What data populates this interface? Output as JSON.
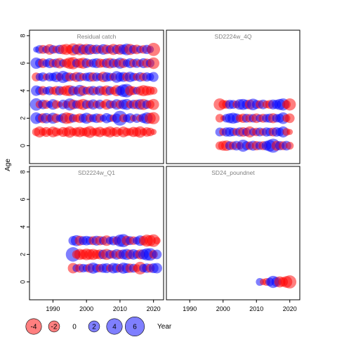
{
  "chart_data": {
    "type": "scatter",
    "subtype": "bubble-residuals",
    "xlabel": "Year",
    "ylabel": "Age",
    "xlim": [
      1983,
      2023
    ],
    "ylim": [
      -1.3,
      8.4
    ],
    "x_ticks": [
      1990,
      2000,
      2010,
      2020
    ],
    "y_ticks": [
      0,
      2,
      4,
      6,
      8
    ],
    "colors": {
      "positive": "#0000ff",
      "negative": "#ff0000",
      "alpha": 0.5
    },
    "legend": {
      "placement": "bottom-left",
      "items": [
        {
          "label": "-4",
          "value": -4
        },
        {
          "label": "-2",
          "value": -2
        },
        {
          "label": "0",
          "value": 0
        },
        {
          "label": "2",
          "value": 2
        },
        {
          "label": "4",
          "value": 4
        },
        {
          "label": "6",
          "value": 6
        }
      ]
    },
    "panels": [
      {
        "title": "Residual catch",
        "ages": [
          1,
          2,
          3,
          4,
          5,
          6,
          7
        ],
        "year_start": 1985,
        "year_end": 2020,
        "residuals": [
          [
            -1.1,
            -2.0,
            -1.0,
            -1.6,
            -0.8,
            -1.9,
            -1.3,
            -0.7,
            -1.6,
            -1.3,
            -2.1,
            -1.0,
            -1.4,
            -1.8,
            -1.2,
            -1.5,
            -2.3,
            -1.0,
            -1.3,
            -1.8,
            -0.9,
            -1.4,
            -2.0,
            -1.1,
            -1.6,
            -0.8,
            -1.9,
            -1.2,
            -1.0,
            -1.7,
            -1.4,
            -2.1,
            -0.9,
            -1.5,
            -1.2,
            -0.6
          ],
          [
            2.2,
            1.3,
            -1.6,
            1.8,
            -1.0,
            2.0,
            -1.4,
            0.9,
            1.6,
            -2.2,
            -1.8,
            1.2,
            -1.0,
            -1.5,
            1.3,
            2.0,
            -1.2,
            1.1,
            1.5,
            -1.3,
            0.8,
            1.7,
            1.0,
            -0.9,
            1.4,
            3.6,
            -1.1,
            1.0,
            1.6,
            -0.8,
            1.4,
            -0.9,
            1.5,
            2.2,
            -2.0,
            -2.4
          ],
          [
            2.5,
            -1.0,
            1.5,
            -1.3,
            0.8,
            1.8,
            -1.2,
            -0.6,
            1.5,
            -1.0,
            2.4,
            -1.6,
            1.2,
            -1.4,
            -2.0,
            1.3,
            -1.2,
            1.7,
            -1.0,
            1.5,
            -0.8,
            -1.8,
            1.2,
            -1.0,
            1.8,
            -1.3,
            1.6,
            2.0,
            -1.1,
            1.4,
            -1.5,
            1.8,
            -2.0,
            1.3,
            -1.2,
            -2.0
          ],
          [
            1.8,
            1.2,
            -1.4,
            0.9,
            1.3,
            -1.0,
            -1.5,
            1.4,
            -1.2,
            -1.8,
            -2.0,
            1.5,
            -1.0,
            2.2,
            -1.6,
            1.0,
            -1.3,
            1.5,
            -1.0,
            1.6,
            -1.2,
            -1.8,
            1.3,
            -1.0,
            -2.0,
            1.5,
            2.6,
            3.0,
            -1.6,
            -1.2,
            1.0,
            -1.4,
            -2.0,
            -1.6,
            -1.3,
            -1.0
          ],
          [
            -1.3,
            1.0,
            1.4,
            -0.8,
            1.3,
            1.2,
            1.8,
            -1.0,
            2.4,
            1.5,
            -1.3,
            1.0,
            -1.6,
            1.4,
            -1.0,
            1.2,
            1.5,
            -1.4,
            1.3,
            1.0,
            -1.8,
            1.5,
            1.2,
            -1.0,
            2.2,
            1.4,
            1.6,
            -1.3,
            1.8,
            1.2,
            -1.0,
            1.5,
            -1.2,
            1.4,
            1.0,
            1.6
          ],
          [
            2.1,
            1.3,
            -1.5,
            1.0,
            1.6,
            -1.2,
            1.4,
            -1.8,
            1.0,
            -1.4,
            -2.2,
            -2.5,
            1.2,
            -1.6,
            -2.0,
            1.5,
            -1.0,
            1.3,
            1.6,
            -1.4,
            -1.2,
            1.5,
            -1.8,
            1.4,
            -1.2,
            2.0,
            -1.5,
            1.0,
            1.6,
            -1.2,
            1.4,
            -1.0,
            1.6,
            -1.4,
            1.2,
            -2.2
          ],
          [
            0.6,
            1.2,
            -1.3,
            1.0,
            -1.8,
            1.2,
            -1.0,
            1.4,
            -1.6,
            -2.0,
            -1.2,
            -2.4,
            1.5,
            -2.2,
            1.6,
            -2.0,
            1.8,
            -1.4,
            1.5,
            -1.2,
            1.8,
            -1.5,
            1.2,
            -2.0,
            1.4,
            -1.8,
            1.6,
            2.2,
            -2.0,
            1.3,
            -1.5,
            1.0,
            -1.2,
            1.4,
            0.9,
            -2.8
          ]
        ]
      },
      {
        "title": "SD2224w_4Q",
        "ages": [
          0,
          1,
          2,
          3
        ],
        "year_start": 1999,
        "year_end": 2020,
        "residuals": [
          [
            -1.2,
            -1.6,
            -1.8,
            1.3,
            -1.2,
            1.5,
            -1.0,
            2.4,
            1.3,
            -1.2,
            1.6,
            -1.4,
            1.2,
            -1.3,
            1.5,
            2.2,
            3.2,
            -1.6,
            1.4,
            -1.3,
            1.5,
            -1.0
          ],
          [
            1.3,
            -1.0,
            1.4,
            1.5,
            1.2,
            -1.0,
            1.4,
            -1.5,
            1.2,
            -2.0,
            1.0,
            -1.2,
            1.3,
            -1.0,
            1.4,
            1.2,
            -1.3,
            1.5,
            1.2,
            2.0,
            -1.0,
            -0.6
          ],
          [
            -1.2,
            -0.5,
            1.2,
            1.6,
            2.0,
            1.5,
            -1.0,
            -1.4,
            1.3,
            -1.2,
            1.2,
            -1.5,
            1.0,
            -1.3,
            1.2,
            1.4,
            -1.6,
            1.2,
            1.3,
            2.2,
            -1.0,
            -1.5
          ],
          [
            -2.4,
            -1.3,
            -1.2,
            1.4,
            1.3,
            -1.0,
            1.8,
            2.0,
            1.4,
            -1.6,
            2.2,
            1.3,
            -1.2,
            1.5,
            -1.0,
            -1.3,
            1.6,
            1.4,
            2.0,
            2.4,
            -1.2,
            -2.4
          ]
        ]
      },
      {
        "title": "SD2224w_Q1",
        "ages": [
          1,
          2,
          3
        ],
        "year_start": 1996,
        "year_end": 2021,
        "residuals": [
          [
            -1.8,
            1.0,
            -1.3,
            1.2,
            1.0,
            -1.4,
            2.0,
            1.3,
            -1.2,
            1.4,
            1.6,
            -1.0,
            1.8,
            1.5,
            -1.2,
            2.0,
            1.6,
            -1.4,
            1.3,
            -1.0,
            -2.6,
            1.2,
            1.5,
            -1.3,
            1.6,
            1.8
          ],
          [
            3.4,
            -1.2,
            -2.0,
            -1.6,
            -2.2,
            -1.8,
            -2.0,
            -1.4,
            -1.6,
            1.5,
            -2.0,
            1.3,
            -1.2,
            1.8,
            -1.4,
            1.6,
            2.0,
            -1.5,
            1.8,
            1.2,
            -1.6,
            1.8,
            2.4,
            2.6,
            -1.2,
            1.5
          ],
          [
            1.4,
            2.0,
            -1.6,
            1.3,
            1.5,
            1.2,
            -1.3,
            1.6,
            -1.4,
            1.2,
            -1.8,
            1.0,
            1.4,
            -1.2,
            2.4,
            2.8,
            -1.6,
            1.3,
            -1.2,
            1.0,
            1.8,
            -1.4,
            -2.4,
            -2.0,
            -2.6,
            -0.9
          ]
        ]
      },
      {
        "title": "SD24_poundnet",
        "ages": [
          0
        ],
        "year_start": 2011,
        "year_end": 2020,
        "residuals": [
          [
            1.0,
            -0.7,
            -1.0,
            1.2,
            2.4,
            1.6,
            -2.0,
            -1.5,
            -2.2,
            -2.8
          ]
        ]
      }
    ]
  }
}
